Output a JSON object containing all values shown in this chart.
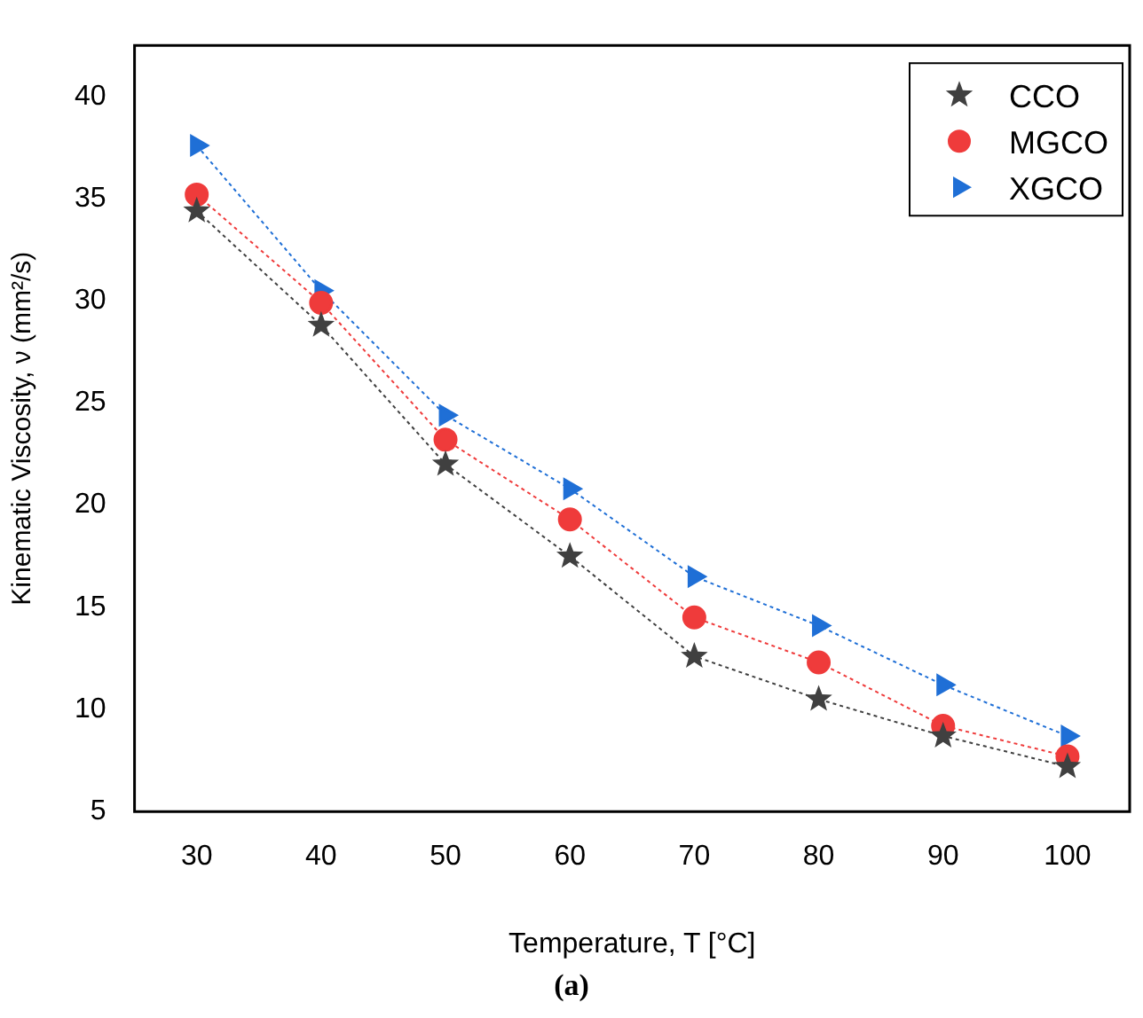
{
  "chart_data": {
    "type": "line",
    "xlabel": "Temperature, T [°C]",
    "ylabel": "Kinematic Viscosity, ν (mm²/s)",
    "categories": [
      "30",
      "40",
      "50",
      "60",
      "70",
      "80",
      "90",
      "100"
    ],
    "ylim": [
      5,
      42.5
    ],
    "yticks": [
      5,
      10,
      15,
      20,
      25,
      30,
      35,
      40
    ],
    "grid": false,
    "legend": "top right",
    "line_style": "dotted",
    "series": [
      {
        "name": "CCO",
        "color": "#404040",
        "marker": "star",
        "values": [
          34.4,
          28.8,
          22,
          17.5,
          12.6,
          10.5,
          8.7,
          7.2
        ]
      },
      {
        "name": "MGCO",
        "color": "#ef3b3b",
        "marker": "circle",
        "values": [
          35.2,
          29.9,
          23.2,
          19.3,
          14.5,
          12.3,
          9.2,
          7.7
        ]
      },
      {
        "name": "XGCO",
        "color": "#1f6fd6",
        "marker": "triangle",
        "values": [
          37.6,
          30.5,
          24.4,
          20.8,
          16.5,
          14.1,
          11.2,
          8.7
        ]
      }
    ],
    "annotations": [
      "(a)"
    ]
  }
}
